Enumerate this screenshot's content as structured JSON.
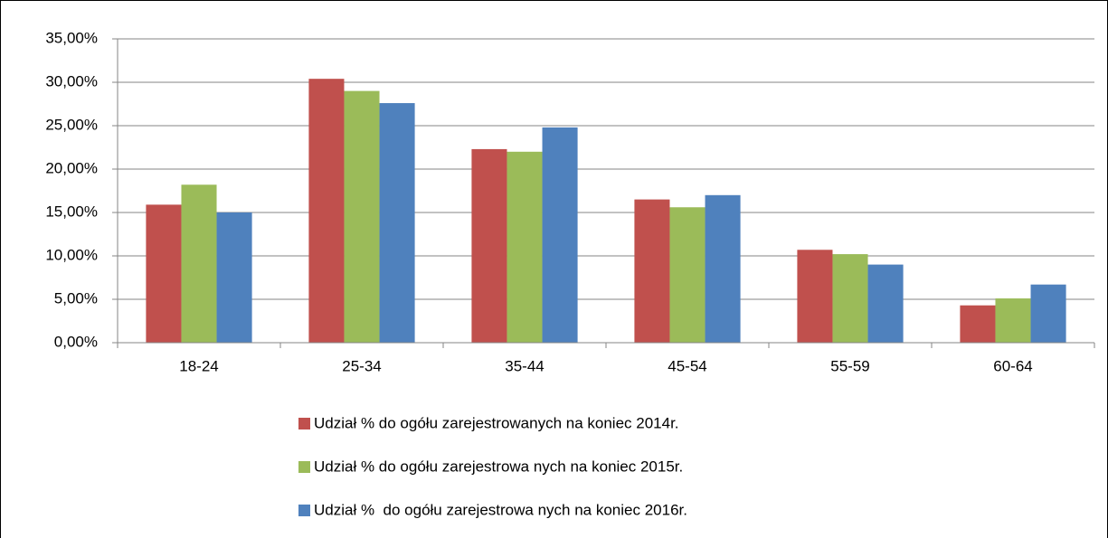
{
  "chart_data": {
    "type": "bar",
    "categories": [
      "18-24",
      "25-34",
      "35-44",
      "45-54",
      "55-59",
      "60-64"
    ],
    "series": [
      {
        "name": "Udział % do ogółu zarejestrowanych na koniec 2014r.",
        "color": "#c0504d",
        "values": [
          15.9,
          30.4,
          22.3,
          16.5,
          10.7,
          4.3
        ]
      },
      {
        "name": "Udział % do ogółu zarejestrowa nych na koniec 2015r.",
        "color": "#9bbb59",
        "values": [
          18.2,
          29.0,
          22.0,
          15.6,
          10.2,
          5.1
        ]
      },
      {
        "name": "Udział %  do ogółu zarejestrowa nych na koniec 2016r.",
        "color": "#4f81bd",
        "values": [
          15.0,
          27.6,
          24.8,
          17.0,
          9.0,
          6.7
        ]
      }
    ],
    "ylim": [
      0,
      35
    ],
    "yticks": [
      {
        "value": 0,
        "label": "0,00%"
      },
      {
        "value": 5,
        "label": "5,00%"
      },
      {
        "value": 10,
        "label": "10,00%"
      },
      {
        "value": 15,
        "label": "15,00%"
      },
      {
        "value": 20,
        "label": "20,00%"
      },
      {
        "value": 25,
        "label": "25,00%"
      },
      {
        "value": 30,
        "label": "30,00%"
      },
      {
        "value": 35,
        "label": "35,00%"
      }
    ],
    "grid": true,
    "legend": "bottom"
  }
}
